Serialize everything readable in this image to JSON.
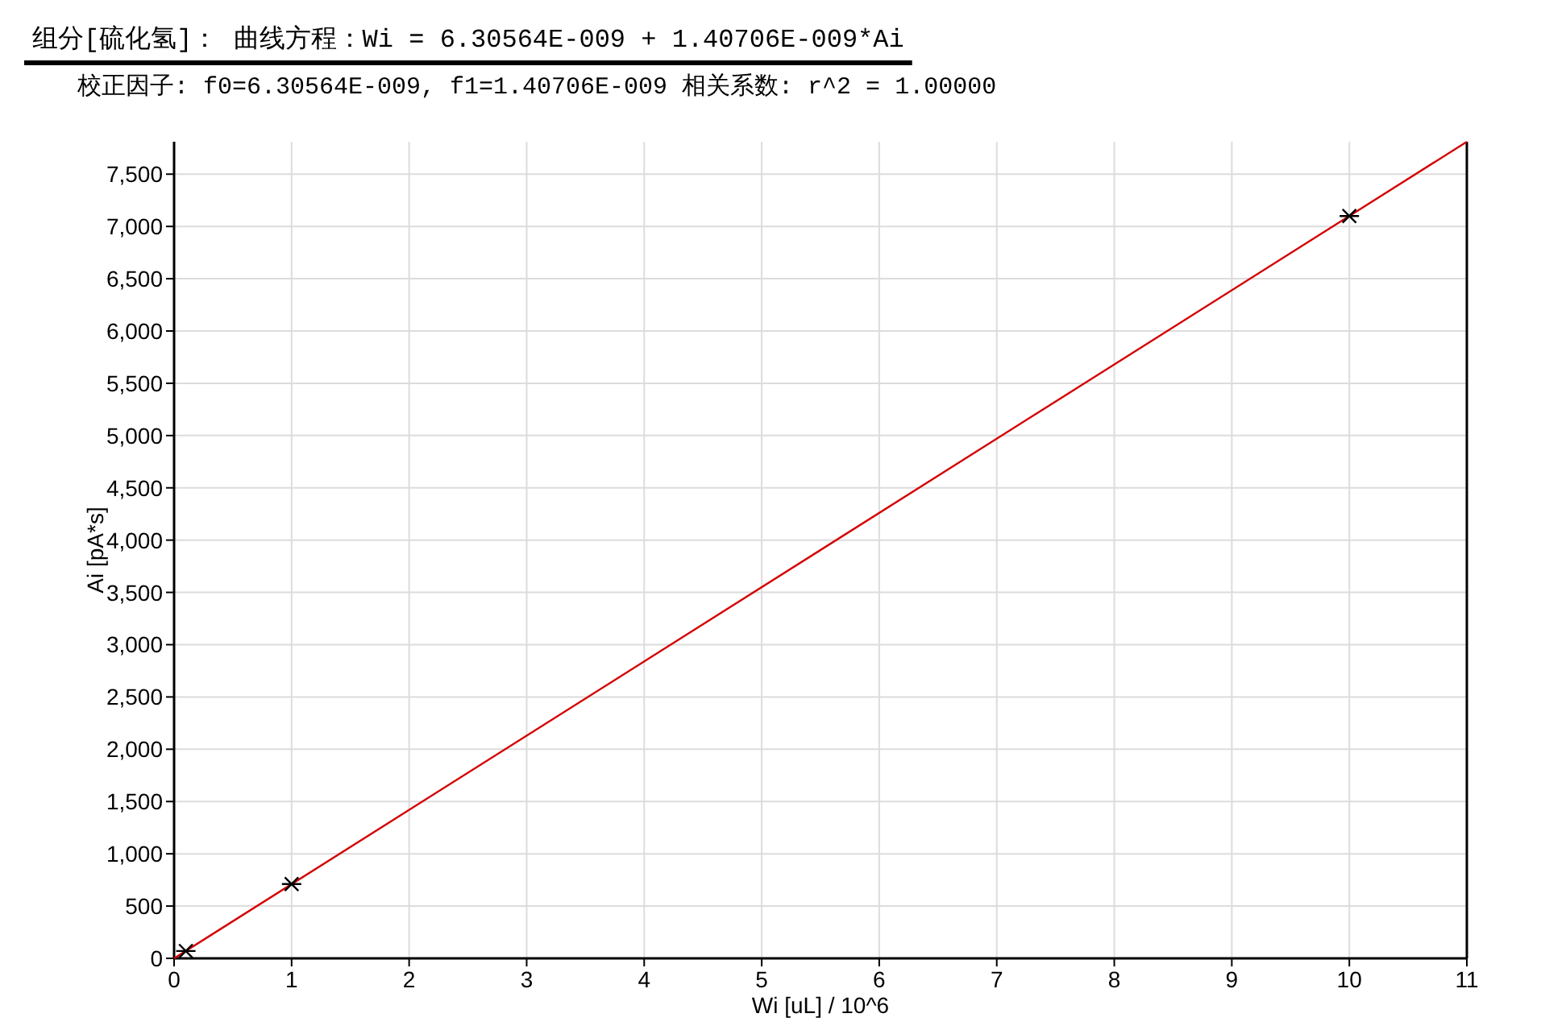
{
  "chart_data": {
    "type": "scatter",
    "title": "组分[硫化氢]： 曲线方程：Wi = 6.30564E-009 + 1.40706E-009*Ai",
    "subtitle": "校正因子: f0=6.30564E-009, f1=1.40706E-009  相关系数: r^2 = 1.00000",
    "xlabel": "Wi [uL] / 10^6",
    "ylabel": "Ai [pA*s]",
    "xlim": [
      0,
      11
    ],
    "ylim": [
      0,
      7810
    ],
    "xticks": [
      0,
      1,
      2,
      3,
      4,
      5,
      6,
      7,
      8,
      9,
      10,
      11
    ],
    "yticks": [
      0,
      500,
      {
        "value": 1000,
        "label": "1,000"
      },
      {
        "value": 1500,
        "label": "1,500"
      },
      {
        "value": 2000,
        "label": "2,000"
      },
      {
        "value": 2500,
        "label": "2,500"
      },
      {
        "value": 3000,
        "label": "3,000"
      },
      {
        "value": 3500,
        "label": "3,500"
      },
      {
        "value": 4000,
        "label": "4,000"
      },
      {
        "value": 4500,
        "label": "4,500"
      },
      {
        "value": 5000,
        "label": "5,000"
      },
      {
        "value": 5500,
        "label": "5,500"
      },
      {
        "value": 6000,
        "label": "6,000"
      },
      {
        "value": 6500,
        "label": "6,500"
      },
      {
        "value": 7000,
        "label": "7,000"
      },
      {
        "value": 7500,
        "label": "7,500"
      }
    ],
    "grid": true,
    "series": [
      {
        "type": "line",
        "color": "#d40000",
        "marker": "none",
        "x": [
          0,
          11
        ],
        "values": [
          0,
          7810
        ]
      },
      {
        "color": "#000000",
        "marker": "cross",
        "x": [
          0.1,
          1,
          10
        ],
        "values": [
          70,
          710,
          7100
        ]
      }
    ]
  }
}
